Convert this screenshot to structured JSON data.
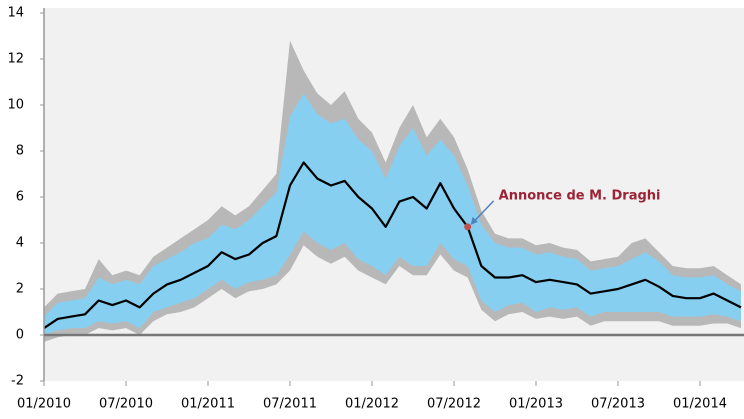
{
  "chart_data": {
    "type": "line",
    "annotation": "Annonce de M. Draghi",
    "categories": [
      "01/2010",
      null,
      null,
      null,
      null,
      null,
      "07/2010",
      null,
      null,
      null,
      null,
      null,
      "01/2011",
      null,
      null,
      null,
      null,
      null,
      "07/2011",
      null,
      null,
      null,
      null,
      null,
      "01/2012",
      null,
      null,
      null,
      null,
      null,
      "07/2012",
      null,
      null,
      null,
      null,
      null,
      "01/2013",
      null,
      null,
      null,
      null,
      null,
      "07/2013",
      null,
      null,
      null,
      null,
      null,
      "01/2014",
      null,
      null,
      null
    ],
    "bands": [
      {
        "color": "#b8b8b8",
        "low": [
          -0.3,
          -0.1,
          0.0,
          0.0,
          0.3,
          0.2,
          0.3,
          0.0,
          0.6,
          0.9,
          1.0,
          1.2,
          1.6,
          2.0,
          1.6,
          1.9,
          2.0,
          2.2,
          2.8,
          3.9,
          3.4,
          3.1,
          3.4,
          2.8,
          2.5,
          2.2,
          3.0,
          2.6,
          2.6,
          3.5,
          2.8,
          2.5,
          1.1,
          0.6,
          0.9,
          1.0,
          0.7,
          0.8,
          0.7,
          0.8,
          0.4,
          0.6,
          0.6,
          0.6,
          0.6,
          0.6,
          0.4,
          0.4,
          0.4,
          0.5,
          0.5,
          0.3
        ],
        "high": [
          1.2,
          1.8,
          1.9,
          2.0,
          3.3,
          2.6,
          2.8,
          2.6,
          3.4,
          3.8,
          4.2,
          4.6,
          5.0,
          5.6,
          5.2,
          5.6,
          6.3,
          7.0,
          12.8,
          11.5,
          10.5,
          10.0,
          10.6,
          9.4,
          8.8,
          7.5,
          9.0,
          10.0,
          8.6,
          9.4,
          8.6,
          7.2,
          5.4,
          4.4,
          4.2,
          4.2,
          3.9,
          4.0,
          3.8,
          3.7,
          3.2,
          3.3,
          3.4,
          4.0,
          4.2,
          3.6,
          3.0,
          2.9,
          2.9,
          3.0,
          2.6,
          2.2
        ]
      },
      {
        "color": "#86cff0",
        "low": [
          0.0,
          0.2,
          0.3,
          0.3,
          0.6,
          0.5,
          0.6,
          0.3,
          1.0,
          1.2,
          1.4,
          1.6,
          2.0,
          2.4,
          2.0,
          2.3,
          2.4,
          2.6,
          3.5,
          4.5,
          4.0,
          3.7,
          4.0,
          3.3,
          3.0,
          2.6,
          3.4,
          3.0,
          3.0,
          4.0,
          3.3,
          3.0,
          1.5,
          1.0,
          1.3,
          1.4,
          1.0,
          1.2,
          1.1,
          1.2,
          0.8,
          1.0,
          1.0,
          1.0,
          1.0,
          1.0,
          0.8,
          0.8,
          0.8,
          0.9,
          0.8,
          0.6
        ],
        "high": [
          0.8,
          1.4,
          1.5,
          1.6,
          2.5,
          2.2,
          2.4,
          2.2,
          3.0,
          3.3,
          3.6,
          4.0,
          4.2,
          4.8,
          4.6,
          5.0,
          5.6,
          6.2,
          9.5,
          10.5,
          9.6,
          9.2,
          9.4,
          8.5,
          8.0,
          6.8,
          8.2,
          9.0,
          7.8,
          8.5,
          7.8,
          6.5,
          4.8,
          4.0,
          3.8,
          3.8,
          3.5,
          3.6,
          3.4,
          3.3,
          2.8,
          2.9,
          3.0,
          3.3,
          3.6,
          3.2,
          2.6,
          2.5,
          2.5,
          2.6,
          2.2,
          1.9
        ]
      }
    ],
    "line": {
      "color": "#000000",
      "values": [
        0.3,
        0.7,
        0.8,
        0.9,
        1.5,
        1.3,
        1.5,
        1.2,
        1.8,
        2.2,
        2.4,
        2.7,
        3.0,
        3.6,
        3.3,
        3.5,
        4.0,
        4.3,
        6.5,
        7.5,
        6.8,
        6.5,
        6.7,
        6.0,
        5.5,
        4.7,
        5.8,
        6.0,
        5.5,
        6.6,
        5.5,
        4.7,
        3.0,
        2.5,
        2.5,
        2.6,
        2.3,
        2.4,
        2.3,
        2.2,
        1.8,
        1.9,
        2.0,
        2.2,
        2.4,
        2.1,
        1.7,
        1.6,
        1.6,
        1.8,
        1.5,
        1.2
      ]
    },
    "ylim": [
      -2,
      14
    ],
    "yticks": [
      -2,
      0,
      2,
      4,
      6,
      8,
      10,
      12,
      14
    ]
  }
}
